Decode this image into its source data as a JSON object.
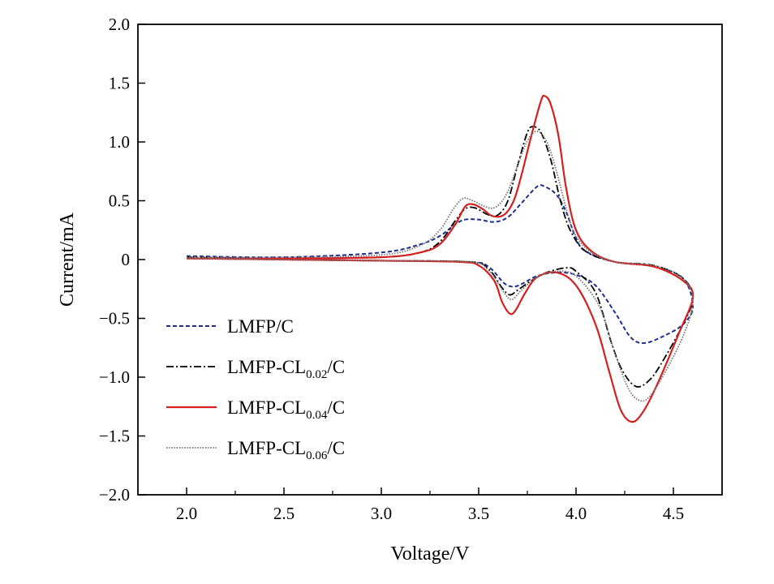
{
  "chart_data": {
    "type": "line",
    "title": "",
    "xlabel": "Voltage/V",
    "ylabel": "Current/mA",
    "xlim": [
      1.75,
      4.75
    ],
    "ylim": [
      -2.0,
      2.0
    ],
    "xticks": [
      "2.0",
      "2.5",
      "3.0",
      "3.5",
      "4.0",
      "4.5"
    ],
    "yticks": [
      "2.0",
      "1.5",
      "1.0",
      "0.5",
      "0",
      "−0.5",
      "−1.0",
      "−1.5",
      "−2.0"
    ],
    "grid": false,
    "legend_position": "bottom-left",
    "series": [
      {
        "name": "LMFP/C",
        "legend": {
          "main": "LMFP/C",
          "sub": "",
          "tail": ""
        },
        "color": "#1f2f8f",
        "style": "dashed",
        "points": [
          [
            2.0,
            0.03
          ],
          [
            2.5,
            0.02
          ],
          [
            3.0,
            0.06
          ],
          [
            3.2,
            0.13
          ],
          [
            3.3,
            0.2
          ],
          [
            3.38,
            0.3
          ],
          [
            3.43,
            0.34
          ],
          [
            3.5,
            0.34
          ],
          [
            3.58,
            0.32
          ],
          [
            3.65,
            0.36
          ],
          [
            3.72,
            0.48
          ],
          [
            3.8,
            0.62
          ],
          [
            3.84,
            0.62
          ],
          [
            3.9,
            0.55
          ],
          [
            3.95,
            0.4
          ],
          [
            4.0,
            0.18
          ],
          [
            4.05,
            0.07
          ],
          [
            4.2,
            -0.02
          ],
          [
            4.4,
            -0.06
          ],
          [
            4.55,
            -0.16
          ],
          [
            4.6,
            -0.4
          ],
          [
            4.55,
            -0.55
          ],
          [
            4.45,
            -0.65
          ],
          [
            4.35,
            -0.71
          ],
          [
            4.28,
            -0.66
          ],
          [
            4.2,
            -0.45
          ],
          [
            4.1,
            -0.22
          ],
          [
            4.0,
            -0.13
          ],
          [
            3.9,
            -0.11
          ],
          [
            3.8,
            -0.14
          ],
          [
            3.73,
            -0.2
          ],
          [
            3.68,
            -0.23
          ],
          [
            3.63,
            -0.2
          ],
          [
            3.55,
            -0.06
          ],
          [
            3.45,
            -0.02
          ],
          [
            3.0,
            -0.01
          ],
          [
            2.5,
            0.0
          ],
          [
            2.0,
            0.01
          ]
        ]
      },
      {
        "name": "LMFP-CL0.02/C",
        "legend": {
          "main": "LMFP-CL",
          "sub": "0.02",
          "tail": "/C"
        },
        "color": "#000000",
        "style": "dashdot",
        "points": [
          [
            2.0,
            0.02
          ],
          [
            2.5,
            0.01
          ],
          [
            3.0,
            0.02
          ],
          [
            3.2,
            0.06
          ],
          [
            3.3,
            0.15
          ],
          [
            3.38,
            0.33
          ],
          [
            3.43,
            0.43
          ],
          [
            3.48,
            0.44
          ],
          [
            3.55,
            0.38
          ],
          [
            3.6,
            0.38
          ],
          [
            3.65,
            0.5
          ],
          [
            3.7,
            0.8
          ],
          [
            3.75,
            1.08
          ],
          [
            3.78,
            1.13
          ],
          [
            3.82,
            1.08
          ],
          [
            3.87,
            0.85
          ],
          [
            3.92,
            0.5
          ],
          [
            3.97,
            0.25
          ],
          [
            4.05,
            0.07
          ],
          [
            4.2,
            -0.02
          ],
          [
            4.4,
            -0.05
          ],
          [
            4.55,
            -0.16
          ],
          [
            4.6,
            -0.33
          ],
          [
            4.55,
            -0.55
          ],
          [
            4.45,
            -0.85
          ],
          [
            4.38,
            -1.02
          ],
          [
            4.31,
            -1.08
          ],
          [
            4.24,
            -0.95
          ],
          [
            4.18,
            -0.7
          ],
          [
            4.1,
            -0.28
          ],
          [
            4.0,
            -0.1
          ],
          [
            3.95,
            -0.07
          ],
          [
            3.85,
            -0.11
          ],
          [
            3.77,
            -0.18
          ],
          [
            3.7,
            -0.26
          ],
          [
            3.66,
            -0.3
          ],
          [
            3.62,
            -0.24
          ],
          [
            3.55,
            -0.08
          ],
          [
            3.45,
            -0.02
          ],
          [
            3.0,
            -0.01
          ],
          [
            2.5,
            0.0
          ],
          [
            2.0,
            0.01
          ]
        ]
      },
      {
        "name": "LMFP-CL0.04/C",
        "legend": {
          "main": "LMFP-CL",
          "sub": "0.04",
          "tail": "/C"
        },
        "color": "#d42020",
        "style": "solid",
        "points": [
          [
            2.0,
            0.01
          ],
          [
            2.5,
            0.01
          ],
          [
            3.0,
            0.02
          ],
          [
            3.2,
            0.06
          ],
          [
            3.3,
            0.13
          ],
          [
            3.38,
            0.3
          ],
          [
            3.43,
            0.45
          ],
          [
            3.47,
            0.47
          ],
          [
            3.52,
            0.43
          ],
          [
            3.57,
            0.37
          ],
          [
            3.63,
            0.38
          ],
          [
            3.68,
            0.5
          ],
          [
            3.72,
            0.72
          ],
          [
            3.77,
            1.05
          ],
          [
            3.82,
            1.35
          ],
          [
            3.84,
            1.39
          ],
          [
            3.87,
            1.32
          ],
          [
            3.91,
            1.05
          ],
          [
            3.95,
            0.6
          ],
          [
            4.0,
            0.25
          ],
          [
            4.08,
            0.07
          ],
          [
            4.2,
            -0.02
          ],
          [
            4.4,
            -0.06
          ],
          [
            4.55,
            -0.18
          ],
          [
            4.6,
            -0.32
          ],
          [
            4.53,
            -0.62
          ],
          [
            4.42,
            -1.05
          ],
          [
            4.35,
            -1.28
          ],
          [
            4.29,
            -1.38
          ],
          [
            4.23,
            -1.28
          ],
          [
            4.17,
            -0.95
          ],
          [
            4.1,
            -0.55
          ],
          [
            4.0,
            -0.22
          ],
          [
            3.9,
            -0.11
          ],
          [
            3.8,
            -0.15
          ],
          [
            3.74,
            -0.28
          ],
          [
            3.69,
            -0.43
          ],
          [
            3.66,
            -0.46
          ],
          [
            3.62,
            -0.36
          ],
          [
            3.58,
            -0.18
          ],
          [
            3.5,
            -0.05
          ],
          [
            3.4,
            -0.02
          ],
          [
            3.0,
            -0.01
          ],
          [
            2.5,
            0.0
          ],
          [
            2.0,
            0.01
          ]
        ]
      },
      {
        "name": "LMFP-CL0.06/C",
        "legend": {
          "main": "LMFP-CL",
          "sub": "0.06",
          "tail": "/C"
        },
        "color": "#7a7a7a",
        "style": "dotted",
        "points": [
          [
            2.0,
            0.02
          ],
          [
            2.5,
            0.02
          ],
          [
            3.0,
            0.04
          ],
          [
            3.2,
            0.12
          ],
          [
            3.3,
            0.25
          ],
          [
            3.37,
            0.43
          ],
          [
            3.42,
            0.52
          ],
          [
            3.47,
            0.5
          ],
          [
            3.55,
            0.44
          ],
          [
            3.6,
            0.46
          ],
          [
            3.65,
            0.58
          ],
          [
            3.7,
            0.8
          ],
          [
            3.75,
            1.01
          ],
          [
            3.8,
            1.09
          ],
          [
            3.85,
            1.0
          ],
          [
            3.9,
            0.75
          ],
          [
            3.95,
            0.43
          ],
          [
            4.0,
            0.2
          ],
          [
            4.08,
            0.06
          ],
          [
            4.2,
            -0.02
          ],
          [
            4.4,
            -0.05
          ],
          [
            4.55,
            -0.16
          ],
          [
            4.6,
            -0.36
          ],
          [
            4.55,
            -0.65
          ],
          [
            4.45,
            -0.98
          ],
          [
            4.38,
            -1.16
          ],
          [
            4.33,
            -1.2
          ],
          [
            4.27,
            -1.1
          ],
          [
            4.2,
            -0.8
          ],
          [
            4.12,
            -0.4
          ],
          [
            4.0,
            -0.14
          ],
          [
            3.9,
            -0.1
          ],
          [
            3.8,
            -0.15
          ],
          [
            3.72,
            -0.26
          ],
          [
            3.67,
            -0.34
          ],
          [
            3.63,
            -0.28
          ],
          [
            3.55,
            -0.09
          ],
          [
            3.45,
            -0.02
          ],
          [
            3.0,
            -0.01
          ],
          [
            2.5,
            0.0
          ],
          [
            2.0,
            0.01
          ]
        ]
      }
    ]
  }
}
